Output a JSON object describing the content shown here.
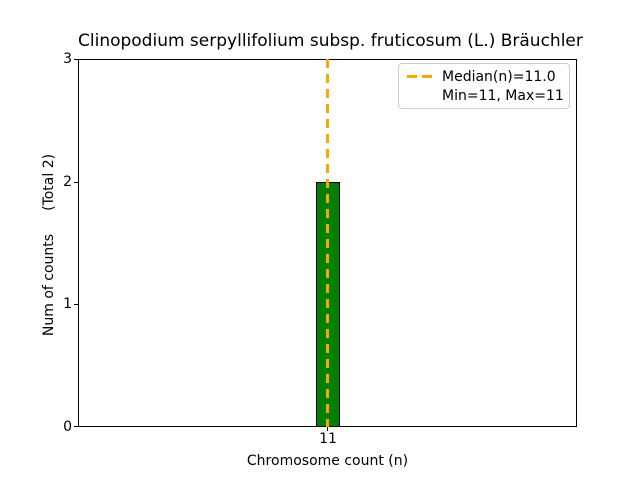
{
  "figure": {
    "title": "Clinopodium serpyllifolium subsp. fruticosum (L.) Bräuchler",
    "xlabel": "Chromosome count (n)",
    "ylabel_main": "Num of counts",
    "ylabel_total": "(Total 2)",
    "yticks": [
      "0",
      "1",
      "2",
      "3"
    ],
    "xtick": "11"
  },
  "legend": {
    "median_label": "Median(n)=11.0",
    "minmax_label": "Min=11, Max=11"
  },
  "colors": {
    "bar_fill": "#008000",
    "bar_edge": "#000000",
    "median_line": "#FFA500",
    "legend_border": "#cccccc",
    "axis": "#000000",
    "background": "#ffffff"
  },
  "chart_data": {
    "type": "bar",
    "categories": [
      11
    ],
    "values": [
      2
    ],
    "series": [
      {
        "name": "Num of counts",
        "values": [
          2
        ]
      }
    ],
    "title": "Clinopodium serpyllifolium subsp. fruticosum (L.) Bräuchler",
    "xlabel": "Chromosome count (n)",
    "ylabel": "Num of counts (Total 2)",
    "ylim": [
      0,
      3
    ],
    "yticks": [
      0,
      1,
      2,
      3
    ],
    "xticks": [
      11
    ],
    "total_counts": 2,
    "median_n": 11.0,
    "min_n": 11,
    "max_n": 11,
    "bar_color": "#008000",
    "bar_edge_color": "#000000",
    "median_line_color": "#FFA500",
    "median_line_style": "dashed",
    "grid": false,
    "legend_position": "upper right",
    "legend_entries": [
      "Median(n)=11.0",
      "Min=11, Max=11"
    ]
  }
}
